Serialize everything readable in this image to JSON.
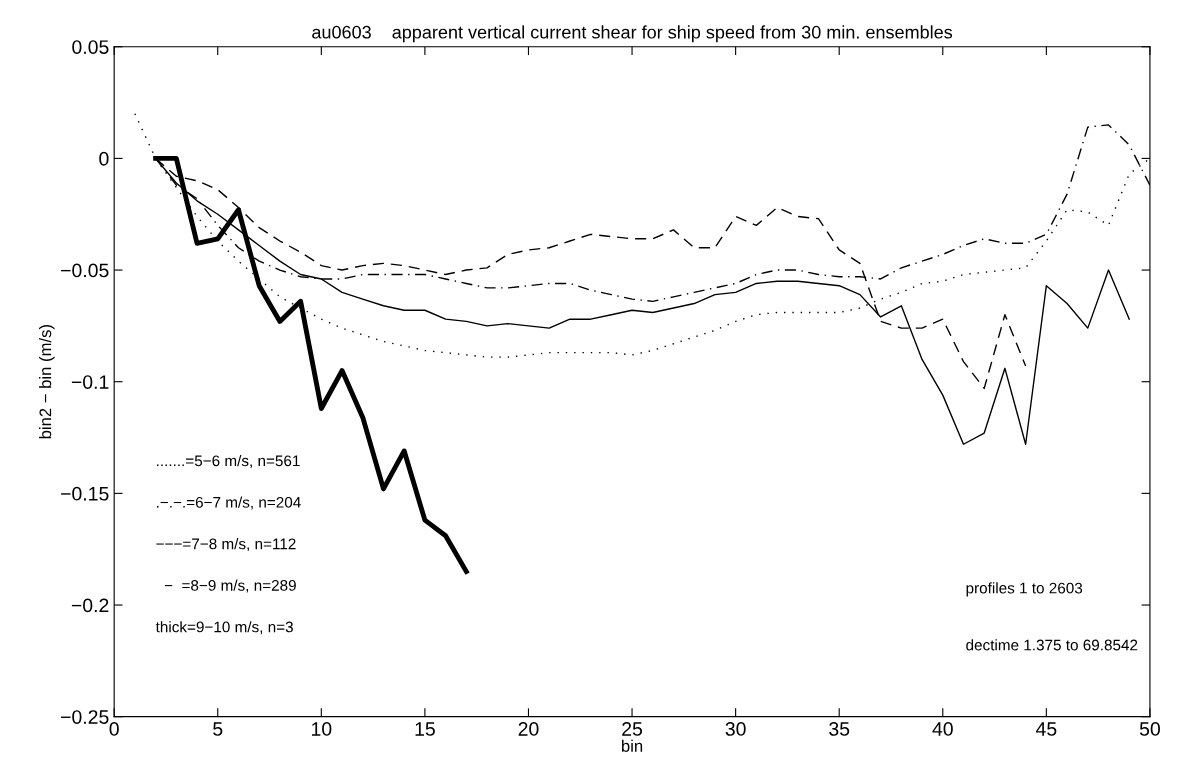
{
  "chart_data": {
    "type": "line",
    "title": "au0603    apparent vertical current shear for ship speed from 30 min. ensembles",
    "xlabel": "bin",
    "ylabel": "bin2 − bin (m/s)",
    "xlim": [
      0,
      50
    ],
    "xticks": [
      0,
      5,
      10,
      15,
      20,
      25,
      30,
      35,
      40,
      45,
      50
    ],
    "ylim": [
      -0.25,
      0.05
    ],
    "yticks": [
      {
        "value": -0.25,
        "label": "−0.25"
      },
      {
        "value": -0.2,
        "label": "−0.2"
      },
      {
        "value": -0.15,
        "label": "−0.15"
      },
      {
        "value": -0.1,
        "label": "−0.1"
      },
      {
        "value": -0.05,
        "label": "−0.05"
      },
      0,
      0.05
    ],
    "grid": false,
    "legend": false,
    "marker": "none",
    "series": [
      {
        "color": "#000000",
        "line_style": "dotted",
        "x": [
          1,
          2,
          3,
          4,
          5,
          6,
          7,
          8,
          9,
          10,
          11,
          12,
          13,
          14,
          15,
          16,
          17,
          18,
          19,
          20,
          21,
          22,
          23,
          24,
          25,
          26,
          27,
          28,
          29,
          30,
          31,
          32,
          33,
          34,
          35,
          36,
          37,
          38,
          39,
          40,
          41,
          42,
          43,
          44,
          45,
          46,
          47,
          48,
          49,
          50
        ],
        "values": [
          0.02,
          0,
          -0.013,
          -0.026,
          -0.037,
          -0.046,
          -0.054,
          -0.062,
          -0.067,
          -0.072,
          -0.076,
          -0.079,
          -0.082,
          -0.084,
          -0.086,
          -0.087,
          -0.088,
          -0.089,
          -0.089,
          -0.088,
          -0.087,
          -0.087,
          -0.087,
          -0.087,
          -0.088,
          -0.086,
          -0.083,
          -0.08,
          -0.077,
          -0.073,
          -0.07,
          -0.069,
          -0.069,
          -0.069,
          -0.069,
          -0.067,
          -0.063,
          -0.06,
          -0.056,
          -0.055,
          -0.052,
          -0.051,
          -0.05,
          -0.049,
          -0.037,
          -0.023,
          -0.024,
          -0.03,
          -0.007,
          0
        ]
      },
      {
        "color": "#000000",
        "line_style": "dashdot",
        "x": [
          2,
          3,
          4,
          5,
          6,
          7,
          8,
          9,
          10,
          11,
          12,
          13,
          14,
          15,
          16,
          17,
          18,
          19,
          20,
          21,
          22,
          23,
          24,
          25,
          26,
          27,
          28,
          29,
          30,
          31,
          32,
          33,
          34,
          35,
          36,
          37,
          38,
          39,
          40,
          41,
          42,
          43,
          44,
          45,
          46,
          47,
          48,
          49,
          50
        ],
        "values": [
          0,
          -0.012,
          -0.018,
          -0.03,
          -0.04,
          -0.046,
          -0.05,
          -0.053,
          -0.054,
          -0.054,
          -0.052,
          -0.052,
          -0.052,
          -0.052,
          -0.054,
          -0.056,
          -0.058,
          -0.058,
          -0.057,
          -0.056,
          -0.056,
          -0.059,
          -0.061,
          -0.063,
          -0.064,
          -0.062,
          -0.06,
          -0.058,
          -0.056,
          -0.052,
          -0.05,
          -0.05,
          -0.052,
          -0.053,
          -0.053,
          -0.054,
          -0.049,
          -0.046,
          -0.043,
          -0.039,
          -0.036,
          -0.038,
          -0.038,
          -0.034,
          -0.016,
          0.014,
          0.015,
          0.006,
          -0.012
        ]
      },
      {
        "color": "#000000",
        "line_style": "dashed",
        "x": [
          2,
          3,
          4,
          5,
          6,
          7,
          8,
          9,
          10,
          11,
          12,
          13,
          14,
          15,
          16,
          17,
          18,
          19,
          20,
          21,
          22,
          23,
          24,
          25,
          26,
          27,
          28,
          29,
          30,
          31,
          32,
          33,
          34,
          35,
          36,
          37,
          38,
          39,
          40,
          41,
          42,
          43,
          44
        ],
        "values": [
          0,
          -0.008,
          -0.01,
          -0.014,
          -0.022,
          -0.031,
          -0.037,
          -0.042,
          -0.048,
          -0.05,
          -0.048,
          -0.047,
          -0.048,
          -0.05,
          -0.052,
          -0.05,
          -0.049,
          -0.043,
          -0.041,
          -0.04,
          -0.037,
          -0.034,
          -0.035,
          -0.036,
          -0.036,
          -0.032,
          -0.04,
          -0.04,
          -0.026,
          -0.03,
          -0.022,
          -0.026,
          -0.027,
          -0.041,
          -0.047,
          -0.073,
          -0.076,
          -0.076,
          -0.072,
          -0.091,
          -0.103,
          -0.07,
          -0.093
        ]
      },
      {
        "color": "#000000",
        "line_style": "solid",
        "x": [
          2,
          3,
          4,
          5,
          6,
          7,
          8,
          9,
          10,
          11,
          12,
          13,
          14,
          15,
          16,
          17,
          18,
          19,
          20,
          21,
          22,
          23,
          24,
          25,
          26,
          27,
          28,
          29,
          30,
          31,
          32,
          33,
          34,
          35,
          36,
          37,
          38,
          39,
          40,
          41,
          42,
          43,
          44,
          45,
          46,
          47,
          48,
          49
        ],
        "values": [
          0,
          -0.011,
          -0.019,
          -0.025,
          -0.032,
          -0.039,
          -0.046,
          -0.052,
          -0.054,
          -0.06,
          -0.063,
          -0.066,
          -0.068,
          -0.068,
          -0.072,
          -0.073,
          -0.075,
          -0.074,
          -0.075,
          -0.076,
          -0.072,
          -0.072,
          -0.07,
          -0.068,
          -0.069,
          -0.067,
          -0.065,
          -0.061,
          -0.06,
          -0.056,
          -0.055,
          -0.055,
          -0.056,
          -0.057,
          -0.061,
          -0.071,
          -0.066,
          -0.09,
          -0.106,
          -0.128,
          -0.123,
          -0.094,
          -0.128,
          -0.057,
          -0.065,
          -0.076,
          -0.05,
          -0.072
        ]
      },
      {
        "color": "#000000",
        "line_style": "solid",
        "x": [
          2,
          3,
          4,
          5,
          6,
          7,
          8,
          9,
          10,
          11,
          12,
          13,
          14,
          15,
          16,
          17
        ],
        "values": [
          0,
          0,
          -0.038,
          -0.036,
          -0.023,
          -0.057,
          -0.073,
          -0.064,
          -0.112,
          -0.095,
          -0.116,
          -0.148,
          -0.131,
          -0.162,
          -0.169,
          -0.185
        ]
      }
    ],
    "annotations": [
      ".......=5−6 m/s, n=561",
      ".−.−.=6−7 m/s, n=204",
      "−−−=7−8 m/s, n=112",
      "  −  =8−9 m/s, n=289",
      "thick=9−10 m/s, n=3",
      "profiles 1 to 2603",
      "dectime 1.375 to 69.8542"
    ]
  }
}
